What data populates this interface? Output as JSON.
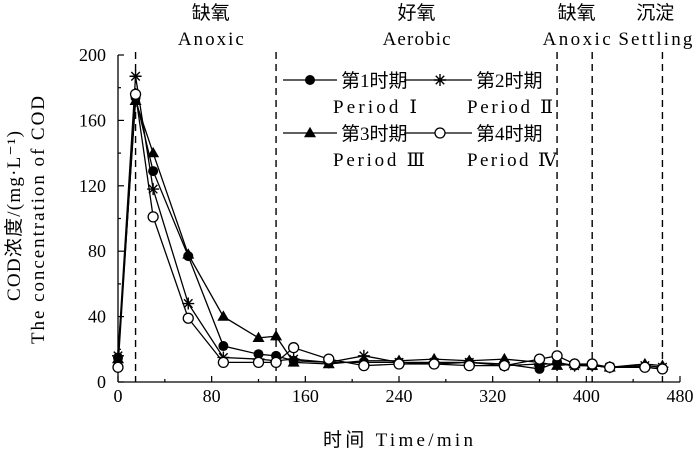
{
  "chart_data": {
    "type": "line",
    "x": [
      0,
      15,
      30,
      60,
      90,
      120,
      135,
      150,
      180,
      210,
      240,
      270,
      300,
      330,
      360,
      375,
      390,
      405,
      420,
      450,
      465
    ],
    "series": [
      {
        "name": "第1时期",
        "name_en": "Period Ⅰ",
        "marker": "filled-circle",
        "values": [
          15,
          174,
          129,
          77,
          22,
          17,
          16,
          13,
          12,
          12,
          12,
          11,
          12,
          11,
          8,
          12,
          10,
          10,
          9,
          9,
          8
        ]
      },
      {
        "name": "第2时期",
        "name_en": "Period Ⅱ",
        "marker": "asterisk",
        "values": [
          16,
          187,
          118,
          48,
          15,
          14,
          13,
          14,
          12,
          16,
          12,
          12,
          12,
          10,
          11,
          11,
          10,
          10,
          9,
          10,
          9
        ]
      },
      {
        "name": "第3时期",
        "name_en": "Period Ⅲ",
        "marker": "filled-triangle",
        "values": [
          14,
          172,
          140,
          78,
          40,
          27,
          28,
          12,
          11,
          13,
          13,
          14,
          13,
          14,
          12,
          10,
          11,
          10,
          9,
          11,
          10
        ]
      },
      {
        "name": "第4时期",
        "name_en": "Period Ⅳ",
        "marker": "open-circle",
        "values": [
          9,
          176,
          101,
          39,
          12,
          12,
          12,
          21,
          14,
          10,
          11,
          11,
          10,
          10,
          14,
          16,
          11,
          11,
          9,
          9,
          8
        ]
      }
    ],
    "xlabel": "时间 Time/min",
    "ylabel": "COD浓度/(mg·L⁻¹)",
    "ylabel_en": "The concentration of COD",
    "xlim": [
      0,
      480
    ],
    "ylim": [
      0,
      200
    ],
    "xticks": [
      0,
      80,
      160,
      240,
      320,
      400,
      480
    ],
    "yticks": [
      0,
      40,
      80,
      120,
      160,
      200
    ],
    "boundary_lines": [
      15,
      135,
      375,
      405,
      465
    ],
    "phases": [
      {
        "zh": "缺氧",
        "en": "Anoxic",
        "start": 15,
        "end": 135
      },
      {
        "zh": "好氧",
        "en": "Aerobic",
        "start": 135,
        "end": 375
      },
      {
        "zh": "缺氧",
        "en": "Anoxic",
        "start": 375,
        "end": 405
      },
      {
        "zh": "沉淀",
        "en": "Settling",
        "start": 405,
        "end": 465
      }
    ],
    "grid": false,
    "legend_position": "top-center",
    "line_color": "#000000"
  }
}
